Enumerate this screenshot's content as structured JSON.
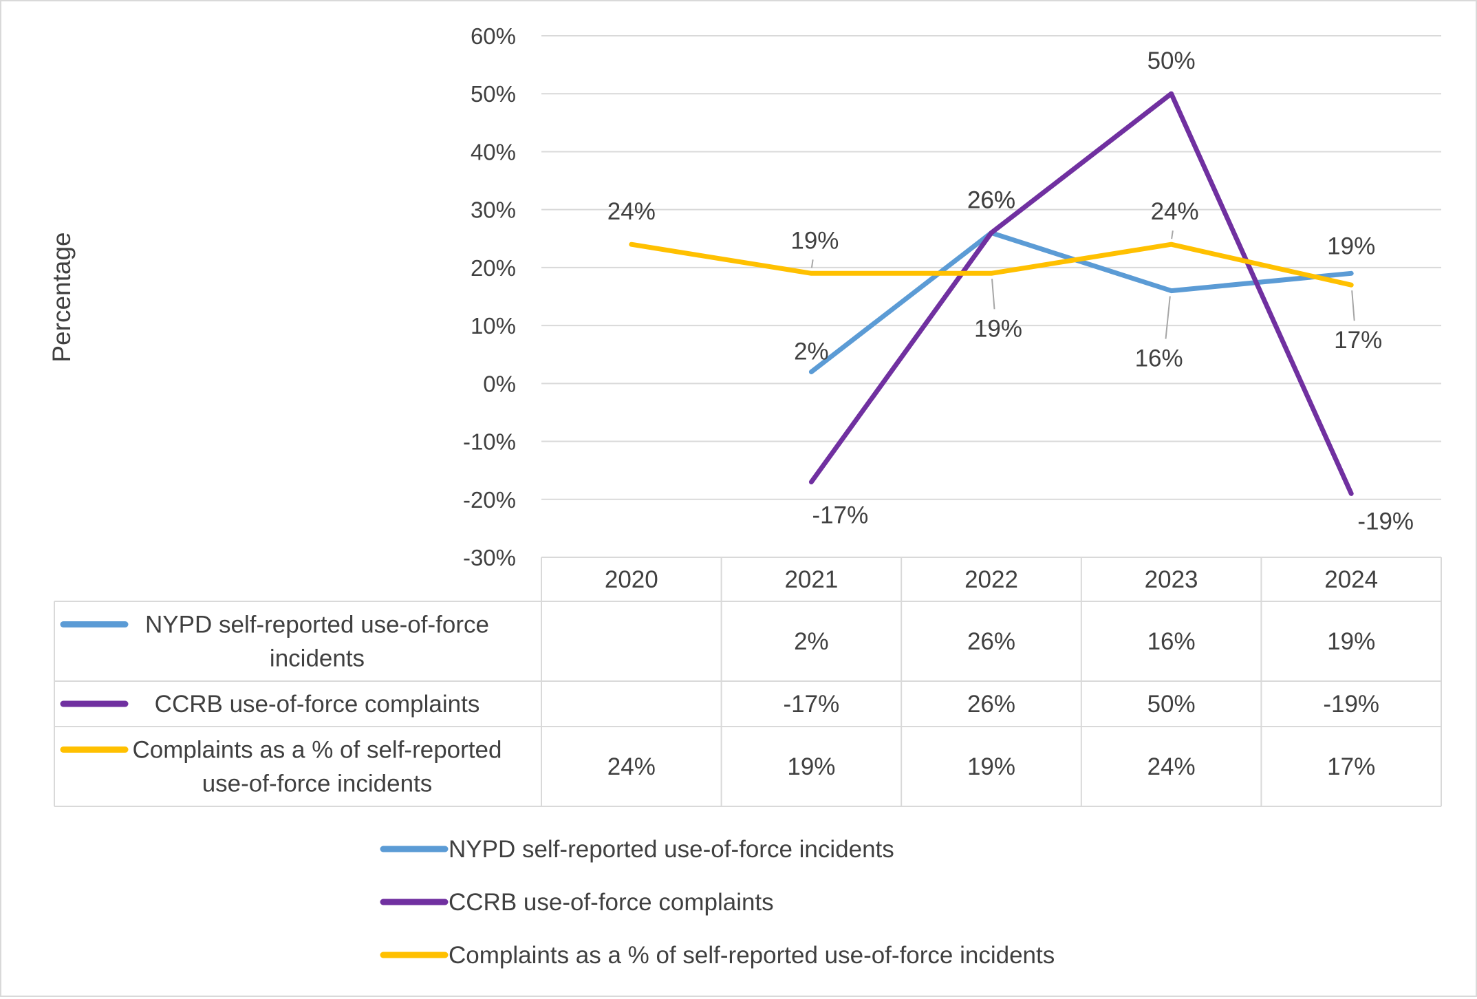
{
  "chart_data": {
    "type": "line",
    "title": "",
    "xlabel": "",
    "ylabel": "Percentage",
    "ylim": [
      -30,
      60
    ],
    "ytick_step": 10,
    "categories": [
      "2020",
      "2021",
      "2022",
      "2023",
      "2024"
    ],
    "series": [
      {
        "name": "NYPD self-reported use-of-force incidents",
        "table_label": [
          "NYPD self-reported use-of-force",
          "incidents"
        ],
        "color": "#5b9bd5",
        "values": [
          null,
          2,
          26,
          16,
          19
        ],
        "labels": [
          "",
          "2%",
          "26%",
          "16%",
          "19%"
        ]
      },
      {
        "name": "CCRB use-of-force complaints",
        "table_label": [
          "CCRB use-of-force complaints"
        ],
        "color": "#7030a0",
        "values": [
          null,
          -17,
          26,
          50,
          -19
        ],
        "labels": [
          "",
          "-17%",
          "26%",
          "50%",
          "-19%"
        ]
      },
      {
        "name": "Complaints as a % of self-reported use-of-force incidents",
        "table_label": [
          "Complaints as a % of self-reported",
          "use-of-force incidents"
        ],
        "color": "#ffc000",
        "values": [
          24,
          19,
          19,
          24,
          17
        ],
        "labels": [
          "24%",
          "19%",
          "19%",
          "24%",
          "17%"
        ]
      }
    ],
    "legend_position": "bottom",
    "gridlines": true,
    "data_table": true
  },
  "colors": {
    "grid": "#d9d9d9",
    "text": "#404040",
    "border": "#d9d9d9",
    "leader": "#a6a6a6"
  }
}
